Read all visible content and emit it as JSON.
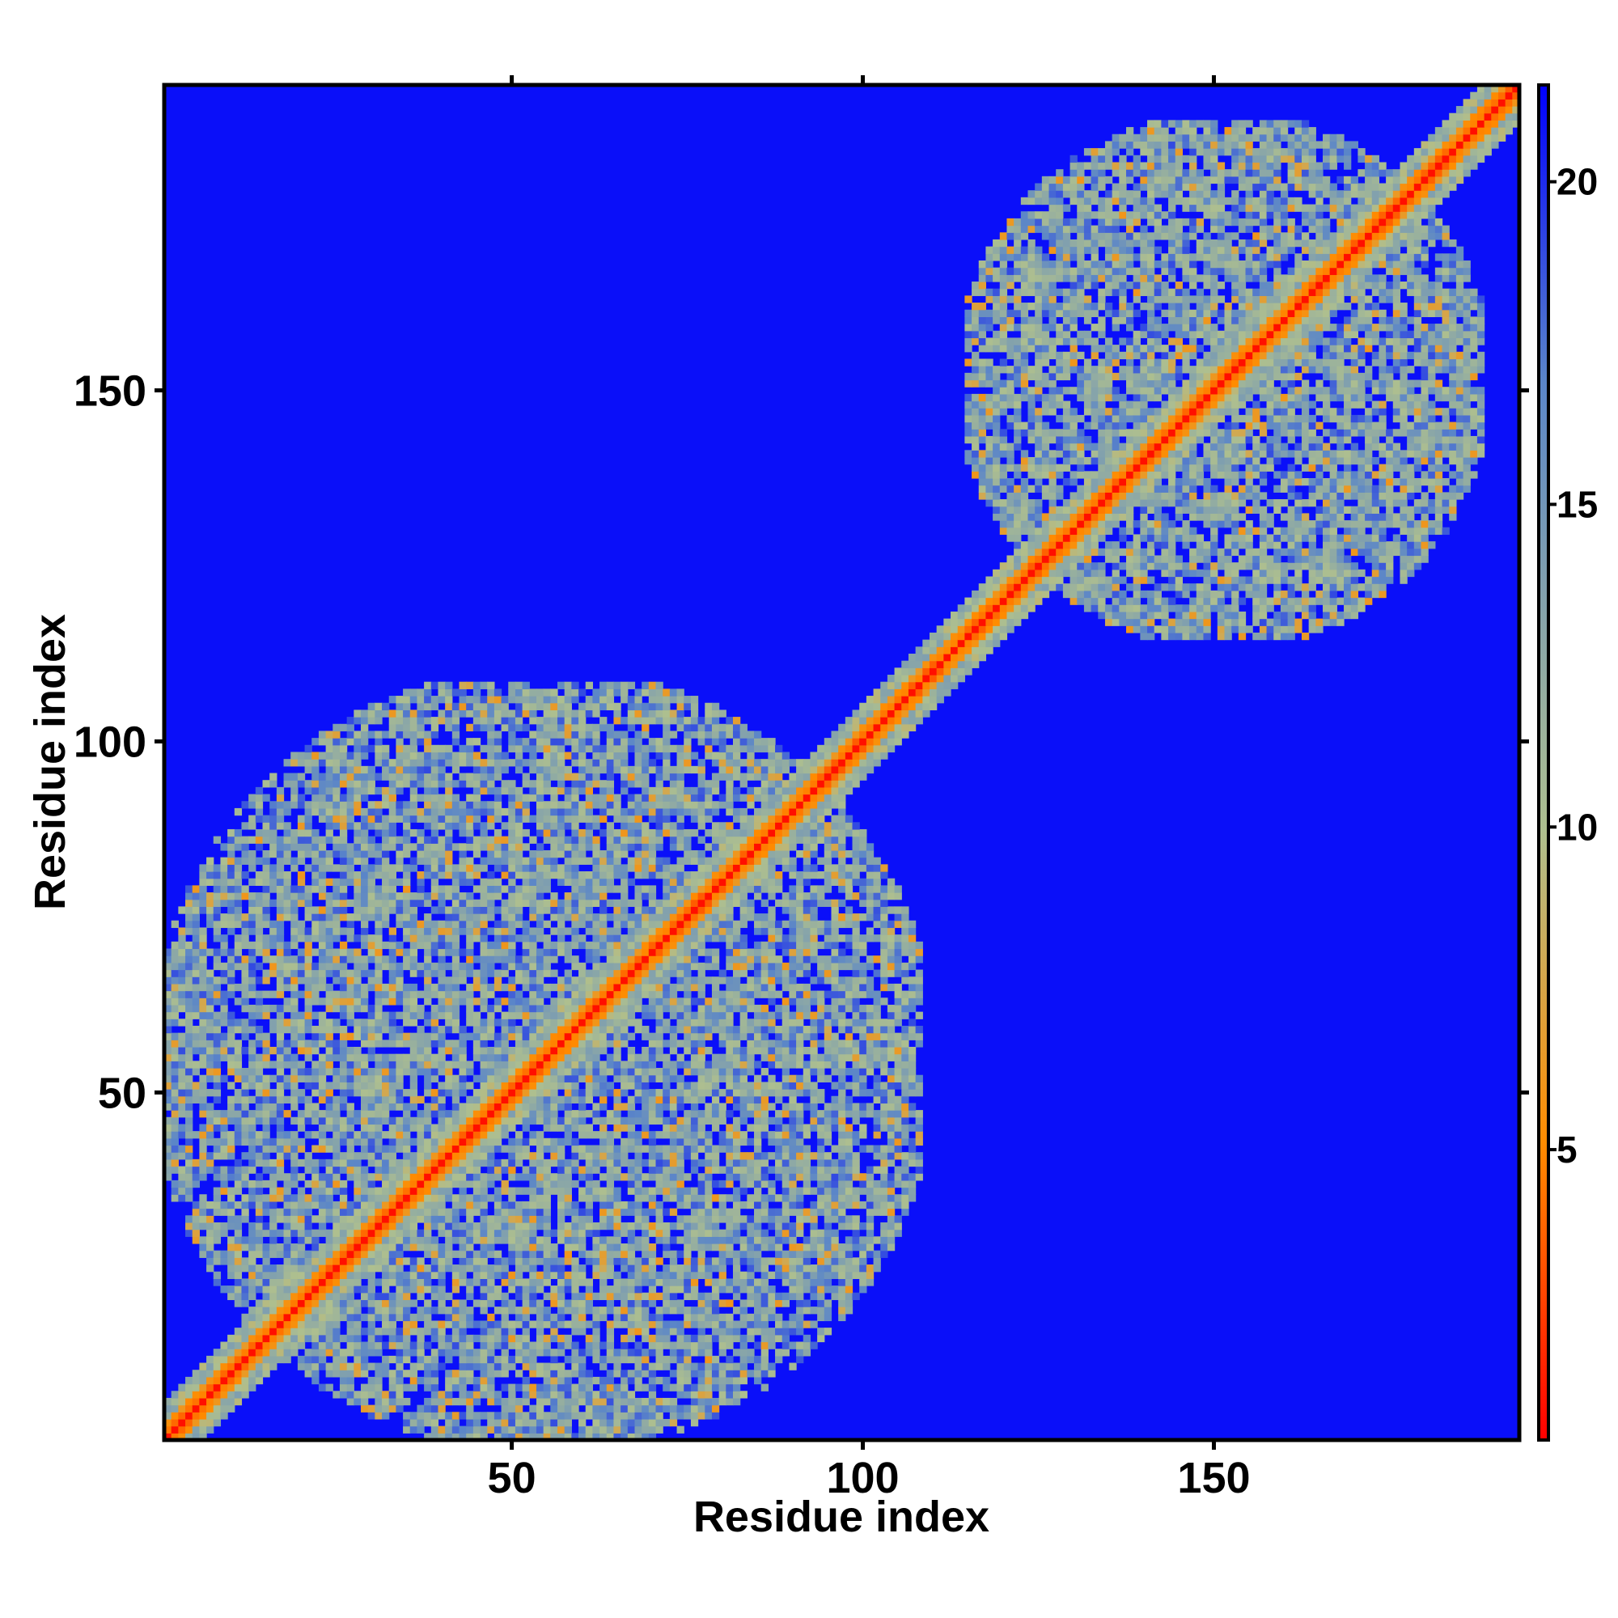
{
  "chart_data": {
    "type": "heatmap",
    "title": "",
    "xlabel": "Residue index",
    "ylabel": "Residue index",
    "xlim": [
      1,
      193
    ],
    "ylim": [
      1,
      193
    ],
    "x_ticks": [
      50,
      100,
      150
    ],
    "y_ticks": [
      50,
      100,
      150
    ],
    "x_tick_labels": [
      "50",
      "100",
      "150"
    ],
    "y_tick_labels": [
      "50",
      "100",
      "150"
    ],
    "colorbar": {
      "range": [
        0.5,
        21.5
      ],
      "ticks": [
        5,
        10,
        15,
        20
      ],
      "tick_labels": [
        "5",
        "10",
        "15",
        "20"
      ],
      "colors": [
        "#ff0000",
        "#ff8c00",
        "#aebf8f",
        "#5b86c8",
        "#0000ff"
      ],
      "position": "right"
    },
    "background_value": 21,
    "diagonal": {
      "from": 1,
      "to": 193,
      "value": 1,
      "near_value": 6,
      "band_value": 14
    },
    "domains": [
      {
        "name": "",
        "range": [
          1,
          108
        ],
        "typical_value": 13
      },
      {
        "name": "",
        "range": [
          115,
          188
        ],
        "typical_value": 13
      }
    ],
    "grid": false
  }
}
